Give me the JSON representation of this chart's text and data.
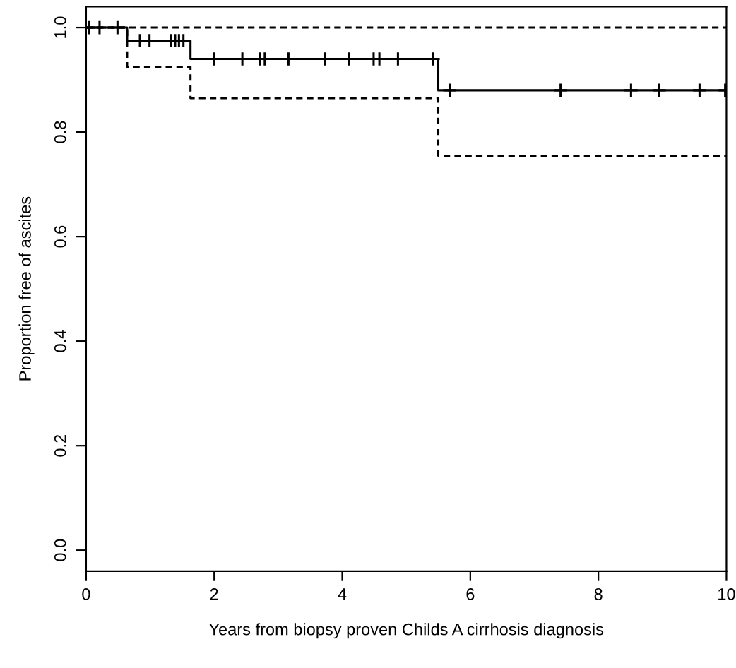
{
  "chart_data": {
    "type": "step",
    "xlabel": "Years from biopsy proven Childs A cirrhosis diagnosis",
    "ylabel": "Proportion free of ascites",
    "xlim": [
      0,
      10
    ],
    "ylim": [
      -0.04,
      1.04
    ],
    "xticks": [
      0,
      2,
      4,
      6,
      8,
      10
    ],
    "yticks": [
      {
        "value": 0,
        "label": "0.0"
      },
      0.2,
      0.4,
      0.6,
      0.8,
      {
        "value": 1,
        "label": "1.0"
      }
    ],
    "grid": false,
    "legend": false,
    "series": [
      {
        "color": "#000000",
        "line_style": "solid",
        "x": [
          0,
          0.64,
          1.63,
          5.5,
          10
        ],
        "values": [
          1.0,
          0.975,
          0.94,
          0.88,
          0.88
        ]
      },
      {
        "color": "#000000",
        "line_style": "dashed",
        "x": [
          0,
          10
        ],
        "values": [
          1.0,
          1.0
        ]
      },
      {
        "color": "#000000",
        "line_style": "dashed",
        "x": [
          0,
          0.64,
          1.63,
          5.5,
          10
        ],
        "values": [
          1.0,
          0.925,
          0.865,
          0.755,
          0.755
        ]
      },
      {
        "type": "scatter",
        "color": "#000000",
        "marker": "cross",
        "x": [
          0.04,
          0.21,
          0.49,
          0.84,
          0.99,
          1.32,
          1.39,
          1.45,
          1.52,
          2.0,
          2.44,
          2.72,
          2.79,
          3.16,
          3.73,
          4.1,
          4.49,
          4.58,
          4.87,
          5.42,
          5.68,
          7.41,
          8.51,
          8.95,
          9.58,
          9.98
        ],
        "values": [
          1.0,
          1.0,
          1.0,
          0.975,
          0.975,
          0.975,
          0.975,
          0.975,
          0.975,
          0.94,
          0.94,
          0.94,
          0.94,
          0.94,
          0.94,
          0.94,
          0.94,
          0.94,
          0.94,
          0.94,
          0.88,
          0.88,
          0.88,
          0.88,
          0.88,
          0.88
        ]
      }
    ]
  }
}
